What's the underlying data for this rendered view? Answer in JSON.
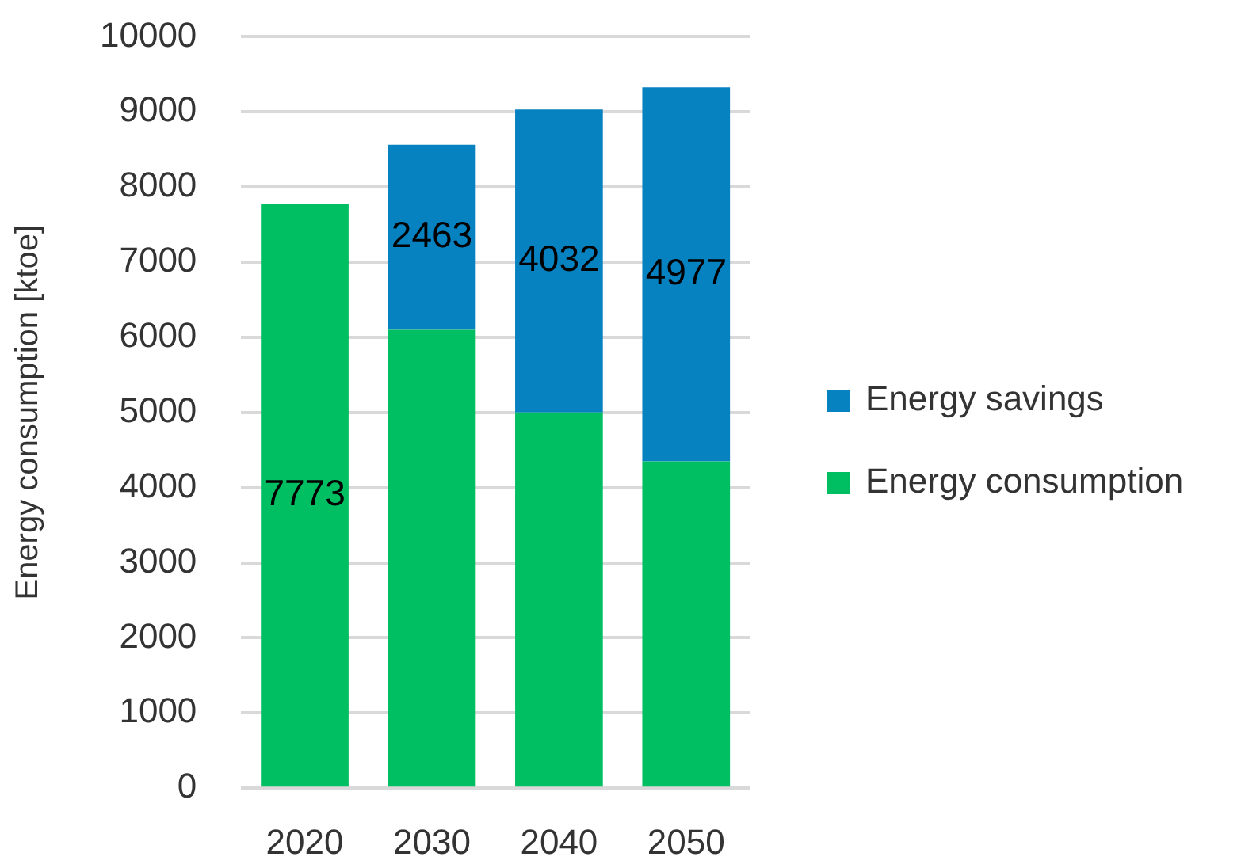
{
  "chart_data": {
    "type": "bar",
    "stacked": true,
    "ylabel": "Energy consumption [ktoe]",
    "categories": [
      "2020",
      "2030",
      "2040",
      "2050"
    ],
    "series": [
      {
        "name": "Energy consumption",
        "color": "#00bf63",
        "values": [
          7773,
          6100,
          5000,
          4350
        ],
        "value_labels": [
          "7773",
          null,
          null,
          null
        ]
      },
      {
        "name": "Energy savings",
        "color": "#0782c1",
        "values": [
          null,
          2463,
          4032,
          4977
        ],
        "value_labels": [
          null,
          "2463",
          "4032",
          "4977"
        ]
      }
    ],
    "ylim": [
      0,
      10000
    ],
    "yticks": [
      0,
      1000,
      2000,
      3000,
      4000,
      5000,
      6000,
      7000,
      8000,
      9000,
      10000
    ],
    "grid": "y",
    "legend": "right"
  }
}
